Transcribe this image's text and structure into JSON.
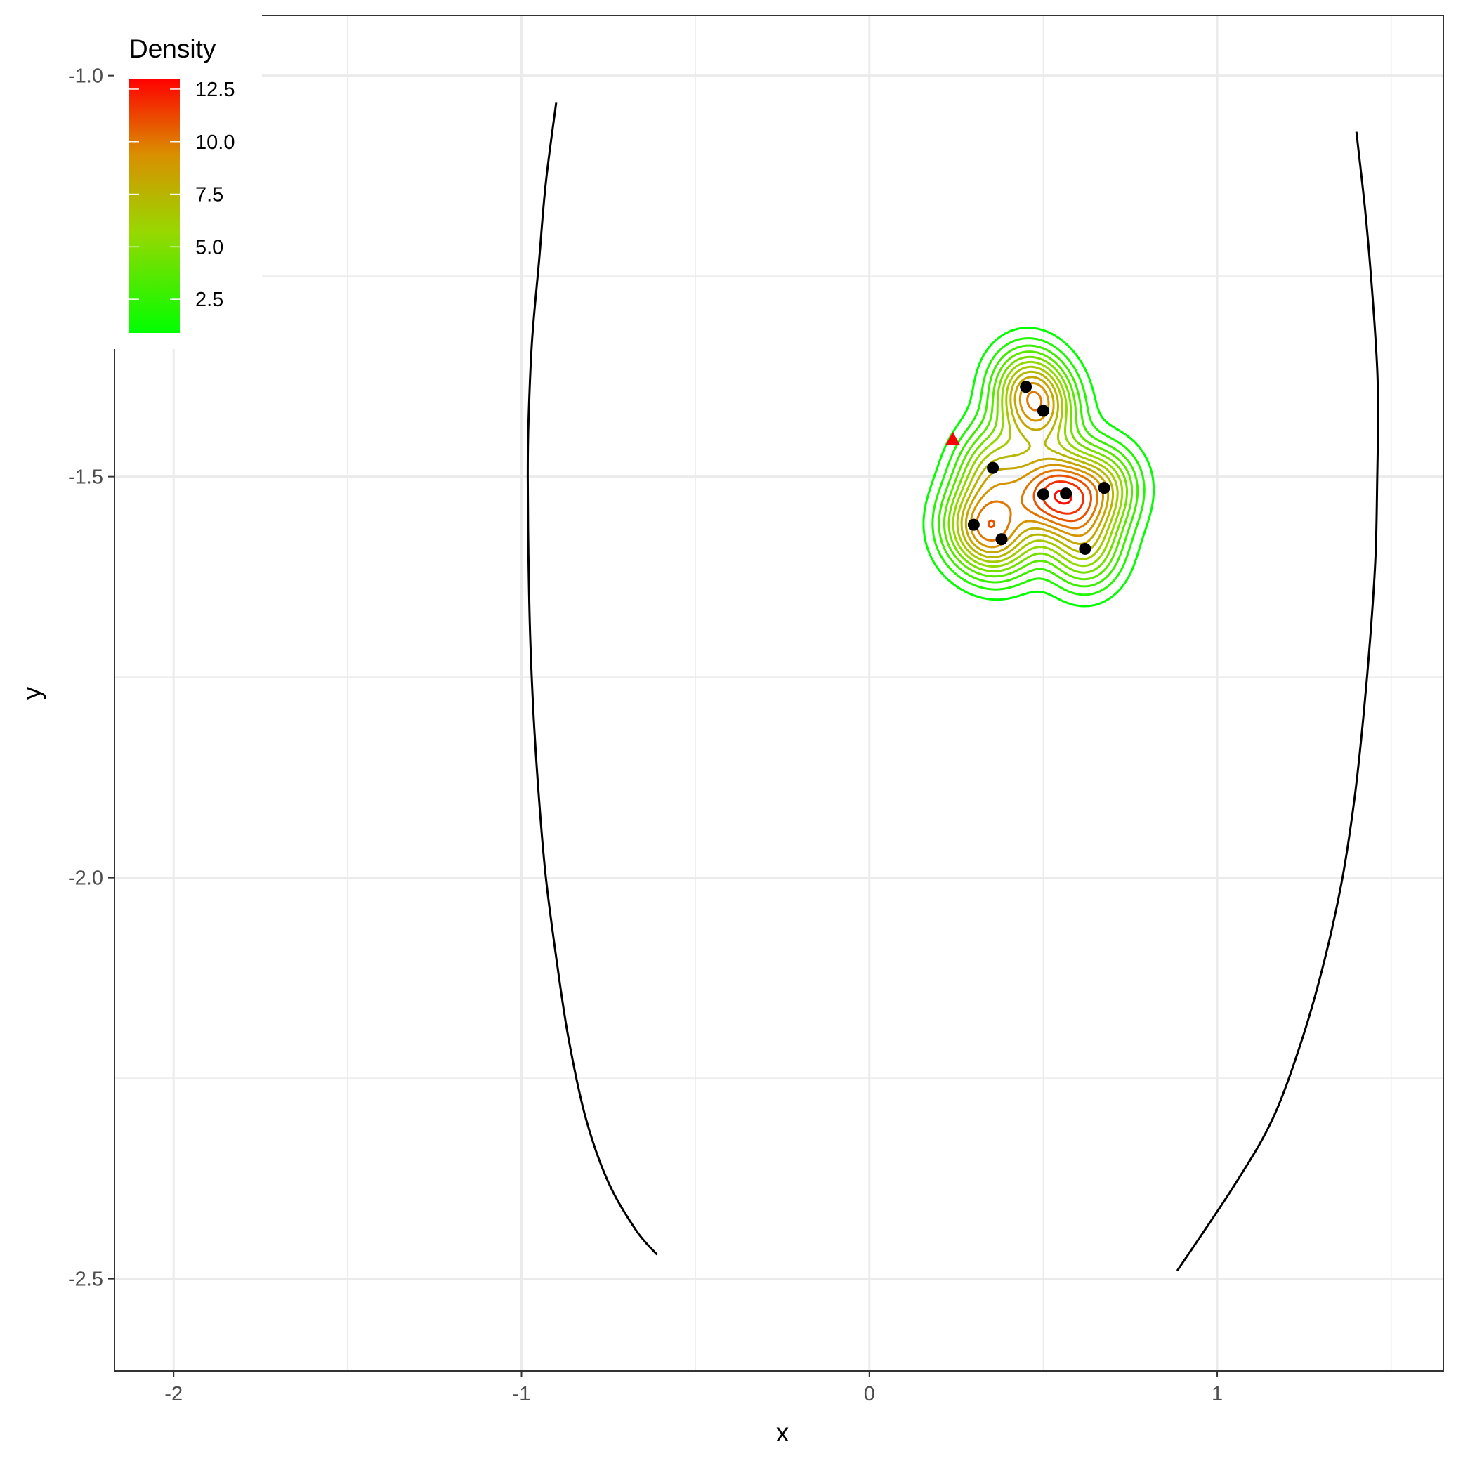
{
  "chart_data": {
    "type": "contour",
    "xlabel": "x",
    "ylabel": "y",
    "xlim": [
      -2.17,
      1.65
    ],
    "ylim": [
      -2.615,
      -0.925
    ],
    "x_ticks": [
      {
        "value": -2,
        "label": "-2"
      },
      {
        "value": -1,
        "label": "-1"
      },
      {
        "value": 0,
        "label": "0"
      },
      {
        "value": 1,
        "label": "1"
      }
    ],
    "y_ticks": [
      {
        "value": -1.0,
        "label": "-1.0"
      },
      {
        "value": -1.5,
        "label": "-1.5"
      },
      {
        "value": -2.0,
        "label": "-2.0"
      },
      {
        "value": -2.5,
        "label": "-2.5"
      }
    ],
    "grid": true,
    "legend": {
      "title": "Density",
      "position": "top-left",
      "range": [
        0.9,
        13.0
      ],
      "color_low": "#00ff00",
      "color_high": "#ff0000",
      "labels": [
        {
          "value": 2.5,
          "label": "2.5"
        },
        {
          "value": 5.0,
          "label": "5.0"
        },
        {
          "value": 7.5,
          "label": "7.5"
        },
        {
          "value": 10.0,
          "label": "10.0"
        },
        {
          "value": 12.5,
          "label": "12.5"
        }
      ]
    },
    "points": [
      {
        "x": 0.45,
        "y": -1.388
      },
      {
        "x": 0.5,
        "y": -1.418
      },
      {
        "x": 0.355,
        "y": -1.489
      },
      {
        "x": 0.5,
        "y": -1.522
      },
      {
        "x": 0.565,
        "y": -1.521
      },
      {
        "x": 0.675,
        "y": -1.514
      },
      {
        "x": 0.3,
        "y": -1.56
      },
      {
        "x": 0.38,
        "y": -1.578
      },
      {
        "x": 0.62,
        "y": -1.59
      }
    ],
    "point_color": "#000000",
    "marker": {
      "x": 0.24,
      "y": -1.453,
      "shape": "triangle",
      "color": "#ff0000"
    },
    "kde_bandwidth": [
      0.075,
      0.038
    ],
    "kde_peak": 12.9,
    "contour_levels": [
      1.0,
      1.9,
      2.8,
      3.7,
      4.6,
      5.5,
      6.4,
      7.3,
      8.2,
      9.1,
      10.0,
      10.9,
      11.8,
      12.7
    ],
    "curves": [
      {
        "name": "left",
        "color": "#000000",
        "points": [
          [
            -0.9,
            -1.033
          ],
          [
            -0.93,
            -1.133
          ],
          [
            -0.95,
            -1.233
          ],
          [
            -0.97,
            -1.333
          ],
          [
            -0.98,
            -1.433
          ],
          [
            -0.982,
            -1.5
          ],
          [
            -0.98,
            -1.6
          ],
          [
            -0.975,
            -1.7
          ],
          [
            -0.965,
            -1.8
          ],
          [
            -0.95,
            -1.9
          ],
          [
            -0.93,
            -2.0
          ],
          [
            -0.9,
            -2.1
          ],
          [
            -0.865,
            -2.2
          ],
          [
            -0.815,
            -2.3
          ],
          [
            -0.75,
            -2.38
          ],
          [
            -0.67,
            -2.44
          ],
          [
            -0.61,
            -2.47
          ]
        ]
      },
      {
        "name": "right",
        "color": "#000000",
        "points": [
          [
            1.4,
            -1.07
          ],
          [
            1.425,
            -1.167
          ],
          [
            1.445,
            -1.267
          ],
          [
            1.46,
            -1.367
          ],
          [
            1.462,
            -1.433
          ],
          [
            1.46,
            -1.5
          ],
          [
            1.455,
            -1.6
          ],
          [
            1.44,
            -1.7
          ],
          [
            1.42,
            -1.8
          ],
          [
            1.395,
            -1.9
          ],
          [
            1.36,
            -2.0
          ],
          [
            1.31,
            -2.1
          ],
          [
            1.245,
            -2.2
          ],
          [
            1.16,
            -2.3
          ],
          [
            1.05,
            -2.383
          ],
          [
            0.885,
            -2.49
          ]
        ]
      }
    ]
  }
}
